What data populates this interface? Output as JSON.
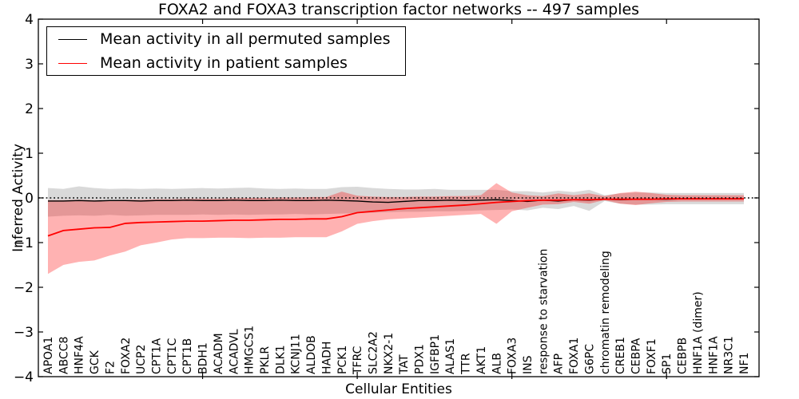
{
  "title": "FOXA2 and FOXA3 transcription factor networks -- 497 samples",
  "legend": {
    "entries": [
      {
        "label": "Mean activity in all permuted samples",
        "color": "#000000"
      },
      {
        "label": "Mean activity in patient samples",
        "color": "#ff0000"
      }
    ],
    "position": "upper left"
  },
  "axes": {
    "ylabel": "Inferred Activity",
    "xlabel": "Cellular Entities",
    "yticks": [
      {
        "value": 4,
        "label": "4"
      },
      {
        "value": 3,
        "label": "3"
      },
      {
        "value": 2,
        "label": "2"
      },
      {
        "value": 1,
        "label": "1"
      },
      {
        "value": 0,
        "label": "0"
      },
      {
        "value": -1,
        "label": "−1"
      },
      {
        "value": -2,
        "label": "−2"
      },
      {
        "value": -3,
        "label": "−3"
      },
      {
        "value": -4,
        "label": "−4"
      }
    ]
  },
  "chart_data": {
    "type": "line",
    "title": "FOXA2 and FOXA3 transcription factor networks -- 497 samples",
    "xlabel": "Cellular Entities",
    "ylabel": "Inferred Activity",
    "ylim": [
      -4,
      4
    ],
    "grid": false,
    "legend_position": "upper left",
    "baseline": {
      "y": 0,
      "style": "dotted",
      "color": "#000000"
    },
    "x_major_tick_indices": [
      10,
      20,
      30,
      40
    ],
    "categories": [
      "APOA1",
      "ABCC8",
      "HNF4A",
      "GCK",
      "F2",
      "FOXA2",
      "UCP2",
      "CPT1A",
      "CPT1C",
      "CPT1B",
      "BDH1",
      "ACADM",
      "ACADVL",
      "HMGCS1",
      "PKLR",
      "DLK1",
      "KCNJ11",
      "ALDOB",
      "HADH",
      "PCK1",
      "TFRC",
      "SLC2A2",
      "NKX2-1",
      "TAT",
      "PDX1",
      "IGFBP1",
      "ALAS1",
      "TTR",
      "AKT1",
      "ALB",
      "FOXA3",
      "INS",
      "response to starvation",
      "AFP",
      "FOXA1",
      "G6PC",
      "chromatin remodeling",
      "CREB1",
      "CEBPA",
      "FOXF1",
      "SP1",
      "CEBPB",
      "HNF1A (dimer)",
      "HNF1A",
      "NR3C1",
      "NF1"
    ],
    "series": [
      {
        "name": "Mean activity in all permuted samples",
        "color": "#000000",
        "style": "solid",
        "values": [
          -0.07,
          -0.07,
          -0.06,
          -0.07,
          -0.06,
          -0.06,
          -0.07,
          -0.06,
          -0.06,
          -0.05,
          -0.06,
          -0.06,
          -0.05,
          -0.06,
          -0.06,
          -0.05,
          -0.06,
          -0.06,
          -0.05,
          -0.06,
          -0.07,
          -0.09,
          -0.1,
          -0.08,
          -0.06,
          -0.06,
          -0.05,
          -0.06,
          -0.05,
          -0.04,
          -0.06,
          -0.08,
          -0.05,
          -0.07,
          -0.04,
          -0.05,
          -0.03,
          -0.04,
          -0.03,
          -0.03,
          -0.03,
          -0.02,
          -0.02,
          -0.02,
          -0.02,
          -0.02
        ]
      },
      {
        "name": "Mean activity in patient samples",
        "color": "#ff0000",
        "style": "solid",
        "values": [
          -0.85,
          -0.73,
          -0.7,
          -0.67,
          -0.66,
          -0.57,
          -0.55,
          -0.54,
          -0.53,
          -0.52,
          -0.52,
          -0.51,
          -0.5,
          -0.5,
          -0.49,
          -0.48,
          -0.48,
          -0.47,
          -0.47,
          -0.42,
          -0.33,
          -0.3,
          -0.27,
          -0.24,
          -0.22,
          -0.2,
          -0.18,
          -0.16,
          -0.13,
          -0.1,
          -0.08,
          -0.06,
          -0.05,
          -0.05,
          -0.04,
          -0.04,
          -0.03,
          -0.03,
          -0.03,
          -0.03,
          -0.02,
          -0.02,
          -0.02,
          -0.02,
          -0.02,
          -0.02
        ]
      }
    ],
    "bands": [
      {
        "name": "permuted samples activity range",
        "color": "#888888",
        "opacity": 0.32,
        "upper": [
          0.22,
          0.2,
          0.26,
          0.22,
          0.2,
          0.21,
          0.2,
          0.21,
          0.2,
          0.21,
          0.22,
          0.21,
          0.22,
          0.23,
          0.21,
          0.2,
          0.21,
          0.2,
          0.2,
          0.24,
          0.25,
          0.22,
          0.2,
          0.19,
          0.19,
          0.2,
          0.18,
          0.18,
          0.18,
          0.18,
          0.15,
          0.15,
          0.12,
          0.16,
          0.13,
          0.18,
          0.06,
          0.1,
          0.12,
          0.12,
          0.11,
          0.11,
          0.11,
          0.11,
          0.11,
          0.11
        ],
        "lower": [
          -0.42,
          -0.4,
          -0.39,
          -0.4,
          -0.38,
          -0.4,
          -0.39,
          -0.38,
          -0.38,
          -0.38,
          -0.37,
          -0.38,
          -0.37,
          -0.38,
          -0.37,
          -0.37,
          -0.36,
          -0.37,
          -0.36,
          -0.35,
          -0.34,
          -0.33,
          -0.32,
          -0.31,
          -0.31,
          -0.3,
          -0.3,
          -0.29,
          -0.28,
          -0.27,
          -0.26,
          -0.28,
          -0.22,
          -0.25,
          -0.18,
          -0.29,
          -0.07,
          -0.13,
          -0.15,
          -0.15,
          -0.14,
          -0.14,
          -0.14,
          -0.14,
          -0.14,
          -0.14
        ]
      },
      {
        "name": "patient samples activity range",
        "color": "#ff0000",
        "opacity": 0.3,
        "upper": [
          -0.05,
          -0.05,
          -0.04,
          -0.05,
          -0.05,
          -0.04,
          -0.04,
          -0.03,
          -0.03,
          -0.02,
          -0.02,
          -0.02,
          -0.01,
          0.0,
          0.0,
          0.01,
          0.01,
          0.02,
          0.02,
          0.14,
          0.05,
          0.03,
          0.02,
          0.02,
          0.03,
          0.03,
          0.04,
          0.04,
          0.06,
          0.33,
          0.12,
          0.06,
          0.04,
          0.1,
          0.06,
          0.1,
          0.04,
          0.11,
          0.14,
          0.11,
          0.07,
          0.06,
          0.06,
          0.06,
          0.06,
          0.06
        ],
        "lower": [
          -1.7,
          -1.5,
          -1.43,
          -1.4,
          -1.29,
          -1.2,
          -1.06,
          -1.0,
          -0.93,
          -0.9,
          -0.9,
          -0.89,
          -0.89,
          -0.9,
          -0.89,
          -0.89,
          -0.88,
          -0.88,
          -0.88,
          -0.75,
          -0.58,
          -0.52,
          -0.48,
          -0.46,
          -0.44,
          -0.42,
          -0.4,
          -0.38,
          -0.36,
          -0.58,
          -0.3,
          -0.22,
          -0.15,
          -0.14,
          -0.09,
          -0.13,
          -0.05,
          -0.13,
          -0.16,
          -0.12,
          -0.09,
          -0.08,
          -0.08,
          -0.08,
          -0.08,
          -0.08
        ]
      }
    ]
  }
}
